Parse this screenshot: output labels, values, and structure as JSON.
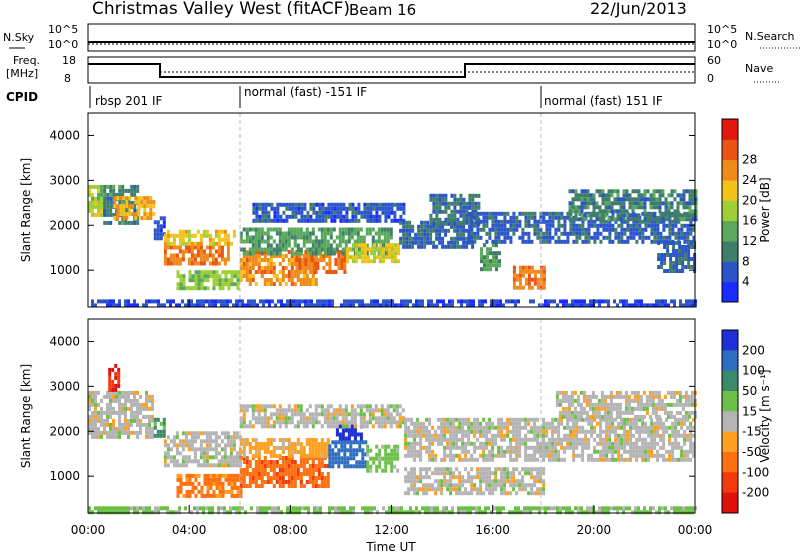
{
  "header": {
    "site": "Christmas Valley West (fitACF)",
    "beam": "Beam 16",
    "date": "22/Jun/2013"
  },
  "param_panels": {
    "nsky_label": "N.Sky",
    "nsky_ticks": [
      "10^5",
      "10^0"
    ],
    "nsearch_label": "N.Search",
    "nsearch_ticks": [
      "10^5",
      "10^0"
    ],
    "freq_label_1": "Freq.",
    "freq_label_2": "[MHz]",
    "freq_ticks": [
      "18",
      "8"
    ],
    "nave_label": "Nave",
    "nave_ticks": [
      "60",
      "0"
    ],
    "cpid_label": "CPID",
    "cpid_segments": [
      {
        "start_hour": 0.0,
        "label": "rbsp 201 IF"
      },
      {
        "start_hour": 6.0,
        "label": "normal (fast) -151 IF"
      },
      {
        "start_hour": 18.0,
        "label": "normal (fast) 151 IF"
      }
    ]
  },
  "axes": {
    "time_ticks": [
      "00:00",
      "04:00",
      "08:00",
      "12:00",
      "16:00",
      "20:00",
      "00:00"
    ],
    "xlabel": "Time UT",
    "range_ticks": [
      "1000",
      "2000",
      "3000",
      "4000"
    ],
    "ylabel": "Slant Range [km]"
  },
  "colorbars": {
    "power": {
      "label": "Power [dB]",
      "ticks": [
        "4",
        "8",
        "12",
        "16",
        "20",
        "24",
        "28"
      ],
      "colors": [
        "#1a2cff",
        "#2b55c8",
        "#3f7e6a",
        "#5aa85c",
        "#9ecf36",
        "#f2c31a",
        "#f08a1a",
        "#ea5314",
        "#e0190c"
      ]
    },
    "velocity": {
      "label": "Velocity [m s⁻¹]",
      "ticks": [
        "200",
        "100",
        "50",
        "15",
        "-15",
        "-50",
        "-100",
        "-200"
      ],
      "colors": [
        "#1f2fd8",
        "#2e6ec0",
        "#3a8a6a",
        "#6cc048",
        "#b4b4b4",
        "#ffa020",
        "#ff7010",
        "#f23a0c",
        "#e0100c"
      ]
    }
  },
  "chart_data": [
    {
      "type": "heatmap",
      "title": "Power",
      "x_unit": "hour UT",
      "xlim": [
        0,
        24
      ],
      "ylim": [
        180,
        4500
      ],
      "quantity": "Power [dB]",
      "echo_regions": [
        {
          "t": [
            0.0,
            0.6
          ],
          "r": [
            2200,
            2900
          ],
          "value": 18
        },
        {
          "t": [
            0.6,
            2.0
          ],
          "r": [
            2050,
            2900
          ],
          "value": 10
        },
        {
          "t": [
            1.0,
            2.6
          ],
          "r": [
            2150,
            2650
          ],
          "value": 24
        },
        {
          "t": [
            2.6,
            3.0
          ],
          "r": [
            1700,
            2200
          ],
          "value": 6
        },
        {
          "t": [
            3.0,
            5.5
          ],
          "r": [
            1150,
            1550
          ],
          "value": 27
        },
        {
          "t": [
            3.0,
            5.8
          ],
          "r": [
            1550,
            1900
          ],
          "value": 22
        },
        {
          "t": [
            3.5,
            6.0
          ],
          "r": [
            600,
            1000
          ],
          "value": 17
        },
        {
          "t": [
            6.0,
            9.0
          ],
          "r": [
            700,
            1450
          ],
          "value": 26
        },
        {
          "t": [
            8.2,
            10.2
          ],
          "r": [
            950,
            1450
          ],
          "value": 28
        },
        {
          "t": [
            6.0,
            12.0
          ],
          "r": [
            1400,
            1950
          ],
          "value": 13
        },
        {
          "t": [
            10.2,
            12.3
          ],
          "r": [
            1200,
            1600
          ],
          "value": 21
        },
        {
          "t": [
            6.5,
            12.5
          ],
          "r": [
            2100,
            2500
          ],
          "value": 6
        },
        {
          "t": [
            12.3,
            15.2
          ],
          "r": [
            1500,
            2100
          ],
          "value": 8
        },
        {
          "t": [
            13.5,
            15.5
          ],
          "r": [
            2000,
            2700
          ],
          "value": 9
        },
        {
          "t": [
            15.5,
            16.3
          ],
          "r": [
            1000,
            1600
          ],
          "value": 13
        },
        {
          "t": [
            16.8,
            18.0
          ],
          "r": [
            650,
            1100
          ],
          "value": 27
        },
        {
          "t": [
            15.0,
            24.0
          ],
          "r": [
            1650,
            2300
          ],
          "value": 7
        },
        {
          "t": [
            19.0,
            24.0
          ],
          "r": [
            2100,
            2800
          ],
          "value": 10
        },
        {
          "t": [
            22.5,
            24.0
          ],
          "r": [
            1000,
            1650
          ],
          "value": 7
        },
        {
          "t": [
            0.0,
            24.0
          ],
          "r": [
            180,
            350
          ],
          "value": 5
        }
      ]
    },
    {
      "type": "heatmap",
      "title": "Velocity",
      "x_unit": "hour UT",
      "xlim": [
        0,
        24
      ],
      "ylim": [
        180,
        4500
      ],
      "quantity": "Velocity [m s-1]",
      "echo_regions": [
        {
          "t": [
            0.0,
            2.6
          ],
          "r": [
            1900,
            2900
          ],
          "value": 0
        },
        {
          "t": [
            0.8,
            1.2
          ],
          "r": [
            2900,
            3500
          ],
          "value": -200
        },
        {
          "t": [
            2.6,
            3.0
          ],
          "r": [
            1900,
            2300
          ],
          "value": 60
        },
        {
          "t": [
            3.0,
            6.0
          ],
          "r": [
            1200,
            2000
          ],
          "value": 0
        },
        {
          "t": [
            3.5,
            6.0
          ],
          "r": [
            600,
            1050
          ],
          "value": -60
        },
        {
          "t": [
            6.0,
            9.5
          ],
          "r": [
            750,
            1450
          ],
          "value": -90
        },
        {
          "t": [
            6.0,
            9.5
          ],
          "r": [
            1450,
            1850
          ],
          "value": -30
        },
        {
          "t": [
            9.5,
            11.0
          ],
          "r": [
            1200,
            1800
          ],
          "value": 140
        },
        {
          "t": [
            9.8,
            10.8
          ],
          "r": [
            1800,
            2150
          ],
          "value": 220
        },
        {
          "t": [
            11.0,
            12.3
          ],
          "r": [
            1100,
            1700
          ],
          "value": 30
        },
        {
          "t": [
            6.0,
            12.5
          ],
          "r": [
            2100,
            2600
          ],
          "value": 0
        },
        {
          "t": [
            12.5,
            24.0
          ],
          "r": [
            1400,
            2300
          ],
          "value": 0
        },
        {
          "t": [
            18.5,
            24.0
          ],
          "r": [
            2300,
            2900
          ],
          "value": 0
        },
        {
          "t": [
            12.5,
            18.0
          ],
          "r": [
            600,
            1200
          ],
          "value": 0
        },
        {
          "t": [
            0.0,
            24.0
          ],
          "r": [
            180,
            330
          ],
          "value": 25
        }
      ]
    }
  ]
}
